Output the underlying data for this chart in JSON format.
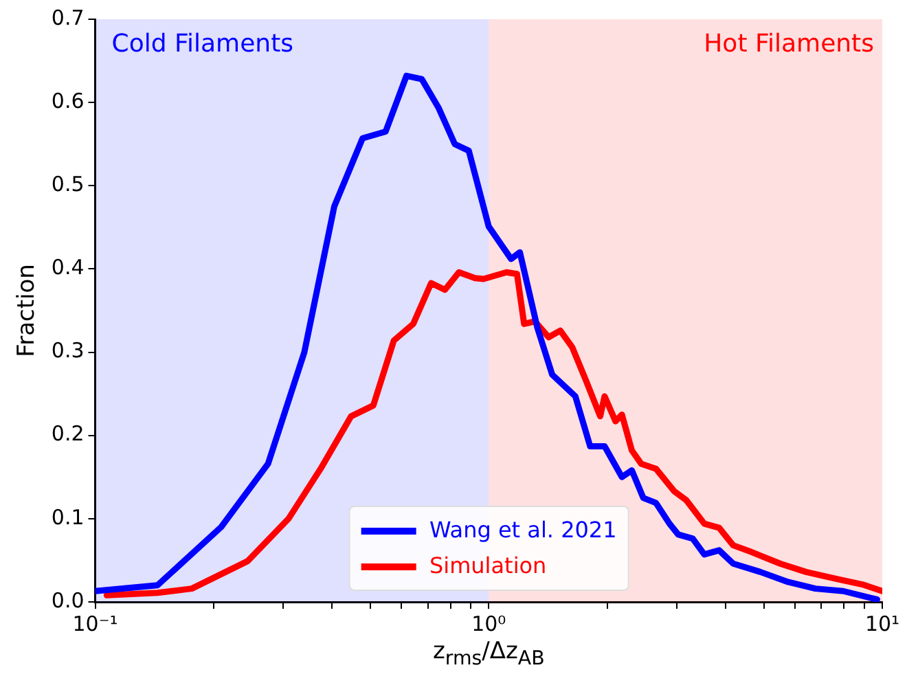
{
  "chart_data": {
    "type": "line",
    "xlabel": "z$_{rms}$/Δz$_{AB}$",
    "ylabel": "Fraction",
    "log": "x",
    "xlim": [
      0.1,
      10
    ],
    "xticks": [
      {
        "value": 0.1,
        "label": "10⁻¹"
      },
      {
        "value": 0.2,
        "label": null
      },
      {
        "value": 0.3,
        "label": null
      },
      {
        "value": 0.4,
        "label": null
      },
      {
        "value": 0.5,
        "label": null
      },
      {
        "value": 0.6,
        "label": null
      },
      {
        "value": 0.7,
        "label": null
      },
      {
        "value": 0.8,
        "label": null
      },
      {
        "value": 0.9,
        "label": null
      },
      {
        "value": 1,
        "label": "10⁰"
      },
      {
        "value": 2,
        "label": null
      },
      {
        "value": 3,
        "label": null
      },
      {
        "value": 4,
        "label": null
      },
      {
        "value": 5,
        "label": null
      },
      {
        "value": 6,
        "label": null
      },
      {
        "value": 7,
        "label": null
      },
      {
        "value": 8,
        "label": null
      },
      {
        "value": 9,
        "label": null
      },
      {
        "value": 10,
        "label": "10¹"
      }
    ],
    "ylim": [
      0,
      0.7
    ],
    "yticks": [
      {
        "value": 0,
        "label": "0.0"
      },
      0.1,
      0.2,
      0.3,
      0.4,
      0.5,
      0.6,
      0.7
    ],
    "grid": false,
    "legend": "bottom",
    "line_style": "solid",
    "marker": "none",
    "bands": [
      {
        "axis": "x",
        "from": 0.1,
        "to": 1,
        "label": "Cold Filaments",
        "color": "#0000ff"
      },
      {
        "axis": "x",
        "from": 1,
        "to": 10,
        "label": "Hot Filaments",
        "color": "#ff0000"
      }
    ],
    "series": [
      {
        "name": "Wang et al. 2021",
        "color": "#0000ff",
        "x": [
          0.1,
          0.144,
          0.209,
          0.275,
          0.34,
          0.405,
          0.478,
          0.547,
          0.618,
          0.676,
          0.745,
          0.82,
          0.89,
          1.0,
          1.14,
          1.2,
          1.33,
          1.45,
          1.66,
          1.81,
          1.97,
          2.18,
          2.31,
          2.47,
          2.66,
          2.88,
          3.03,
          3.3,
          3.53,
          3.85,
          4.18,
          4.9,
          5.76,
          6.76,
          7.96,
          9.7
        ],
        "values": [
          0.013,
          0.02,
          0.09,
          0.166,
          0.3,
          0.475,
          0.557,
          0.565,
          0.632,
          0.628,
          0.594,
          0.55,
          0.542,
          0.451,
          0.412,
          0.42,
          0.329,
          0.273,
          0.247,
          0.187,
          0.187,
          0.15,
          0.158,
          0.125,
          0.119,
          0.094,
          0.081,
          0.076,
          0.057,
          0.062,
          0.046,
          0.036,
          0.024,
          0.016,
          0.013,
          0.003
        ]
      },
      {
        "name": "Simulation",
        "color": "#ff0000",
        "x": [
          0.107,
          0.144,
          0.176,
          0.244,
          0.31,
          0.374,
          0.447,
          0.509,
          0.574,
          0.643,
          0.714,
          0.774,
          0.84,
          0.923,
          0.97,
          1.11,
          1.18,
          1.23,
          1.31,
          1.42,
          1.52,
          1.63,
          1.77,
          1.92,
          1.97,
          2.1,
          2.18,
          2.31,
          2.44,
          2.66,
          2.96,
          3.18,
          3.53,
          3.85,
          4.18,
          4.65,
          5.5,
          6.4,
          7.6,
          8.9,
          10
        ],
        "values": [
          0.008,
          0.011,
          0.016,
          0.049,
          0.1,
          0.16,
          0.223,
          0.236,
          0.314,
          0.334,
          0.383,
          0.375,
          0.396,
          0.389,
          0.388,
          0.396,
          0.394,
          0.334,
          0.337,
          0.318,
          0.326,
          0.306,
          0.265,
          0.223,
          0.247,
          0.217,
          0.225,
          0.182,
          0.166,
          0.16,
          0.133,
          0.122,
          0.094,
          0.089,
          0.068,
          0.06,
          0.046,
          0.036,
          0.028,
          0.021,
          0.013
        ]
      }
    ]
  }
}
